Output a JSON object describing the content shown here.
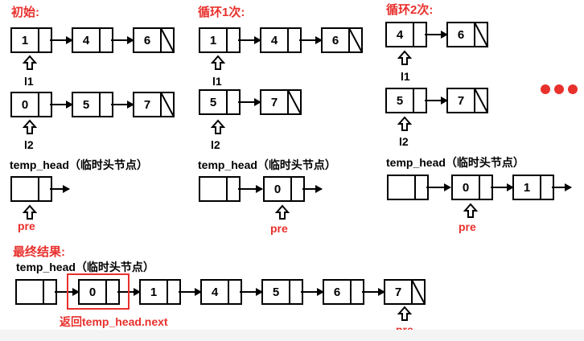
{
  "sections": {
    "initial": {
      "title": "初始:",
      "list_l1": [
        "1",
        "4",
        "6"
      ],
      "list_l2": [
        "0",
        "5",
        "7"
      ],
      "ptr_l1": "l1",
      "ptr_l2": "l2",
      "temp_head_label": "temp_head（临时头节点）",
      "pre_label": "pre"
    },
    "loop1": {
      "title": "循环1次:",
      "list_l1": [
        "1",
        "4",
        "6"
      ],
      "list_l2": [
        "5",
        "7"
      ],
      "ptr_l1": "l1",
      "ptr_l2": "l2",
      "temp_head_label": "temp_head（临时头节点）",
      "merged": [
        "0"
      ],
      "pre_label": "pre"
    },
    "loop2": {
      "title": "循环2次:",
      "list_l1": [
        "4",
        "6"
      ],
      "list_l2": [
        "5",
        "7"
      ],
      "ptr_l1": "l1",
      "ptr_l2": "l2",
      "temp_head_label": "temp_head（临时头节点）",
      "merged": [
        "0",
        "1"
      ],
      "pre_label": "pre"
    },
    "final": {
      "title": "最终结果:",
      "temp_head_label": "temp_head（临时头节点）",
      "merged": [
        "0",
        "1",
        "4",
        "5",
        "6",
        "7"
      ],
      "return_label": "返回temp_head.next",
      "pre_label": "pre"
    }
  },
  "colors": {
    "accent": "#e8302c",
    "stroke": "#000000",
    "dots": "#e8302c"
  }
}
